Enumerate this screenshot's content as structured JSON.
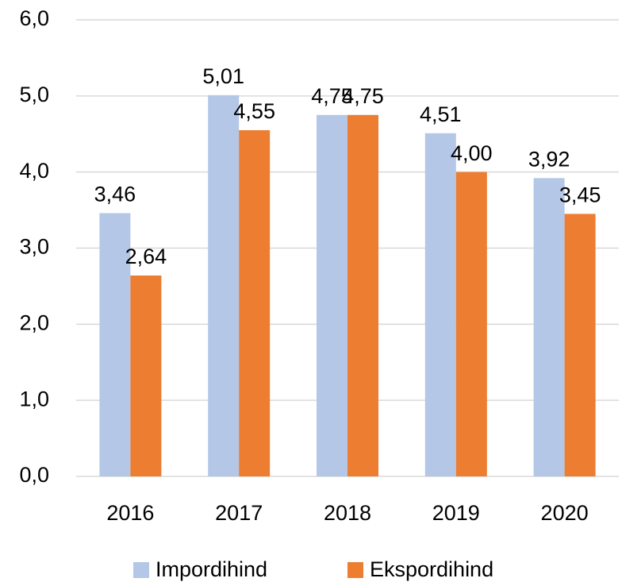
{
  "chart_data": {
    "type": "bar",
    "categories": [
      "2016",
      "2017",
      "2018",
      "2019",
      "2020"
    ],
    "series": [
      {
        "name": "Impordihind",
        "color": "#b4c7e7",
        "values": [
          3.46,
          5.01,
          4.75,
          4.51,
          3.92
        ],
        "value_labels": [
          "3,46",
          "5,01",
          "4,75",
          "4,51",
          "3,92"
        ]
      },
      {
        "name": "Ekspordihind",
        "color": "#ed7d31",
        "values": [
          2.64,
          4.55,
          4.75,
          4.0,
          3.45
        ],
        "value_labels": [
          "2,64",
          "4,55",
          "4,75",
          "4,00",
          "3,45"
        ]
      }
    ],
    "ylim": [
      0,
      6
    ],
    "yticks": [
      {
        "value": 0,
        "label": "0,0"
      },
      {
        "value": 1,
        "label": "1,0"
      },
      {
        "value": 2,
        "label": "2,0"
      },
      {
        "value": 3,
        "label": "3,0"
      },
      {
        "value": 4,
        "label": "4,0"
      },
      {
        "value": 5,
        "label": "5,0"
      },
      {
        "value": 6,
        "label": "6,0"
      }
    ],
    "grid": true,
    "legend": "bottom"
  }
}
